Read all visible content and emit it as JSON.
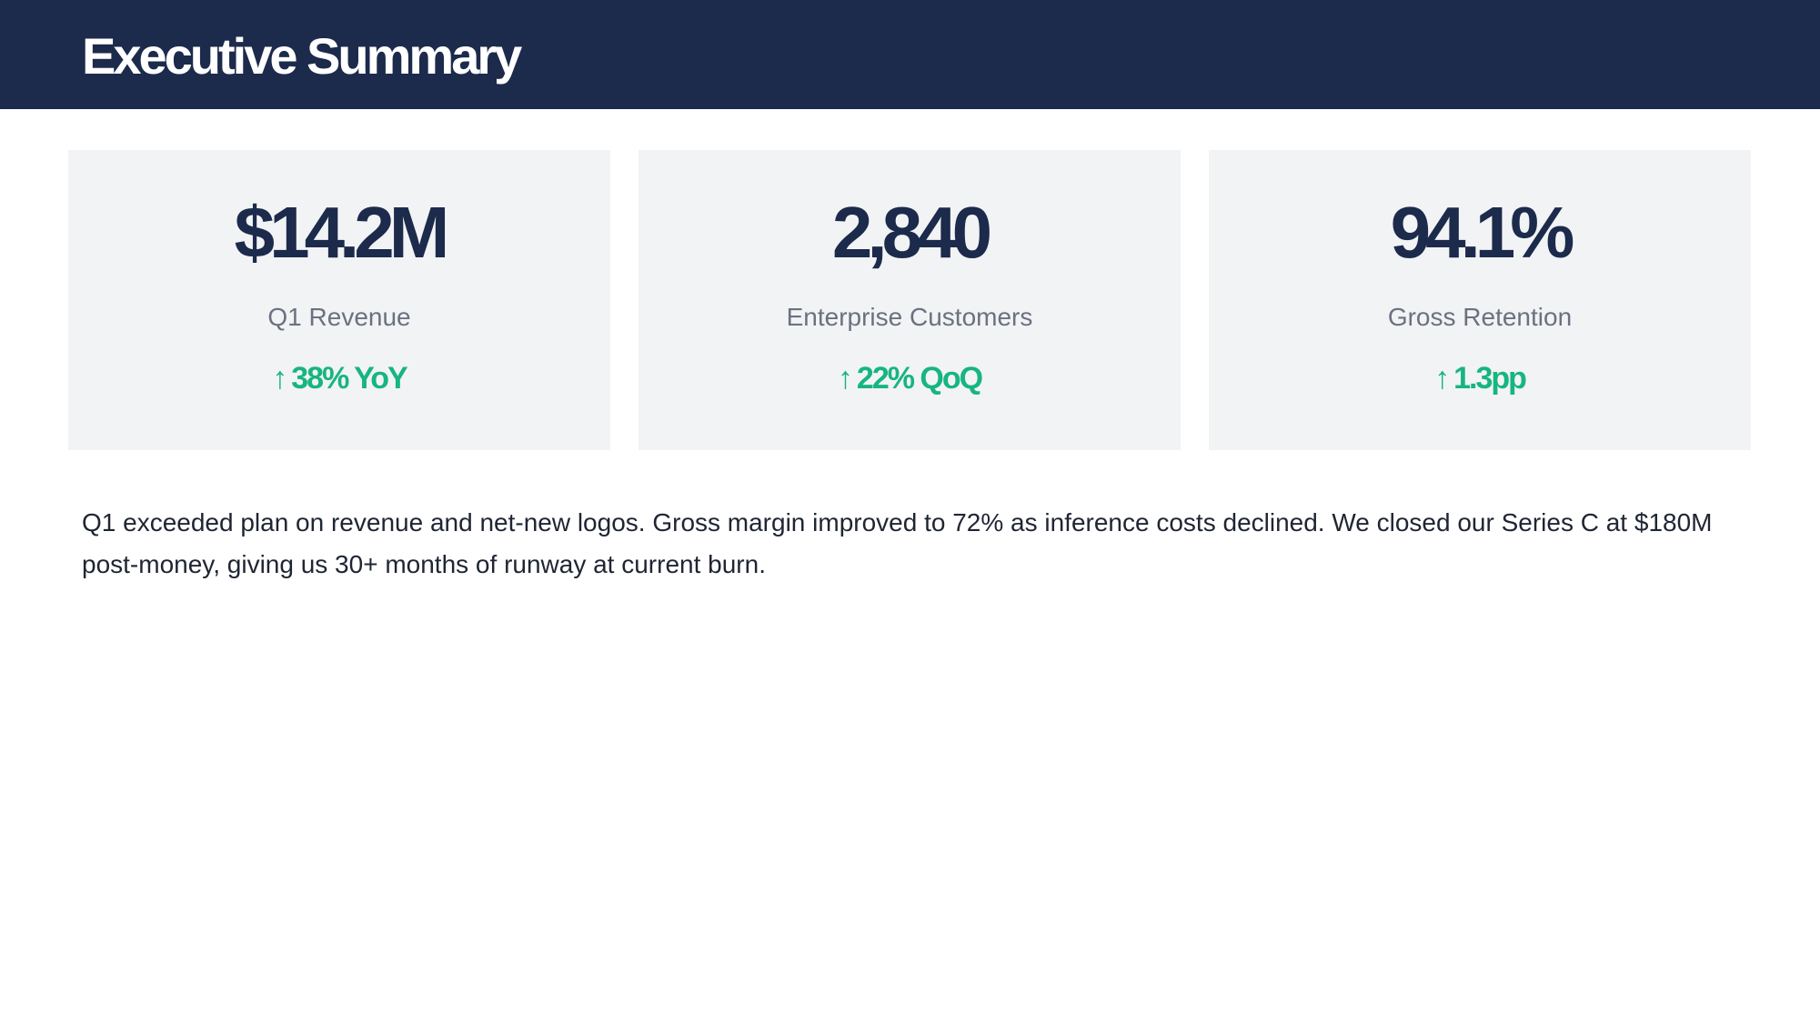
{
  "header": {
    "title": "Executive Summary"
  },
  "metrics": [
    {
      "value": "$14.2M",
      "label": "Q1 Revenue",
      "change_icon": "arrow-up-icon",
      "change_arrow": "↑",
      "change": "38% YoY"
    },
    {
      "value": "2,840",
      "label": "Enterprise Customers",
      "change_icon": "arrow-up-icon",
      "change_arrow": "↑",
      "change": "22% QoQ"
    },
    {
      "value": "94.1%",
      "label": "Gross Retention",
      "change_icon": "arrow-up-icon",
      "change_arrow": "↑",
      "change": "1.3pp"
    }
  ],
  "summary": {
    "text": "Q1 exceeded plan on revenue and net-new logos. Gross margin improved to 72% as inference costs declined. We closed our Series C at $180M post-money, giving us 30+ months of runway at current burn."
  },
  "colors": {
    "header_background": "#1c2a4b",
    "card_background": "#f2f3f5",
    "metric_value": "#1c2a4b",
    "metric_label": "#6b7180",
    "positive_change": "#17b57f",
    "body_text": "#1f2533"
  }
}
